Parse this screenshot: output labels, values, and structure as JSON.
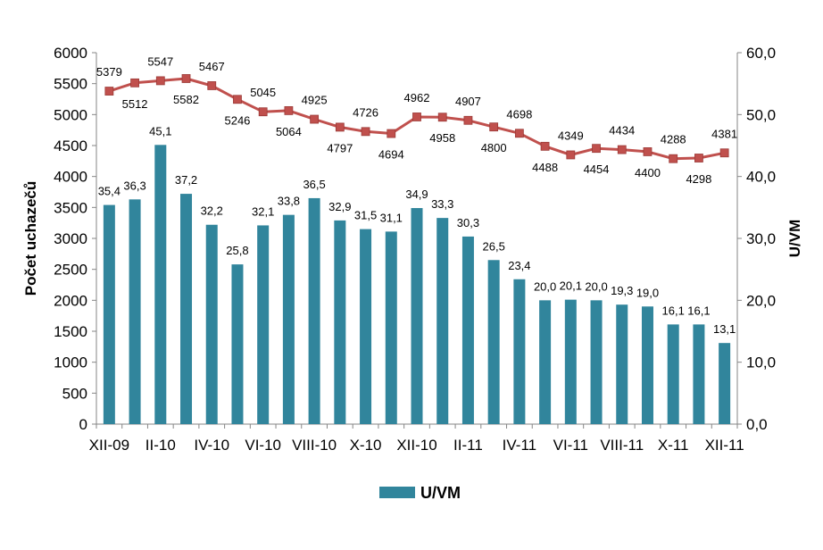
{
  "chart_data": {
    "type": "bar",
    "categories": [
      "XII-09",
      "I-10",
      "II-10",
      "III-10",
      "IV-10",
      "V-10",
      "VI-10",
      "VII-10",
      "VIII-10",
      "IX-10",
      "X-10",
      "XI-10",
      "XII-10",
      "I-11",
      "II-11",
      "III-11",
      "IV-11",
      "V-11",
      "VI-11",
      "VII-11",
      "VIII-11",
      "IX-11",
      "X-11",
      "XI-11",
      "XII-11"
    ],
    "x_tick_labels": [
      "XII-09",
      "II-10",
      "IV-10",
      "VI-10",
      "VIII-10",
      "X-10",
      "XII-10",
      "II-11",
      "IV-11",
      "VI-11",
      "VIII-11",
      "X-11",
      "XII-11"
    ],
    "series": [
      {
        "name": "U/VM",
        "kind": "bar",
        "axis": "right",
        "color": "#31859c",
        "values": [
          35.4,
          36.3,
          45.1,
          37.2,
          32.2,
          25.8,
          32.1,
          33.8,
          36.5,
          32.9,
          31.5,
          31.1,
          34.9,
          33.3,
          30.3,
          26.5,
          23.4,
          20.0,
          20.1,
          20.0,
          19.3,
          19.0,
          16.1,
          16.1,
          13.1
        ],
        "labels": [
          "35,4",
          "36,3",
          "45,1",
          "37,2",
          "32,2",
          "25,8",
          "32,1",
          "33,8",
          "36,5",
          "32,9",
          "31,5",
          "31,1",
          "34,9",
          "33,3",
          "30,3",
          "26,5",
          "23,4",
          "20,0",
          "20,1",
          "20,0",
          "19,3",
          "19,0",
          "16,1",
          "16,1",
          "13,1"
        ]
      },
      {
        "kind": "line",
        "axis": "left",
        "color": "#c0504d",
        "values": [
          5379,
          5512,
          5547,
          5582,
          5467,
          5246,
          5045,
          5064,
          4925,
          4797,
          4726,
          4694,
          4962,
          4958,
          4907,
          4800,
          4698,
          4488,
          4349,
          4454,
          4434,
          4400,
          4288,
          4298,
          4381
        ],
        "label_positions": [
          "above",
          "below",
          "above",
          "below",
          "above",
          "below",
          "above",
          "below",
          "above",
          "below",
          "above",
          "below",
          "above",
          "below",
          "above",
          "below",
          "above",
          "below",
          "above",
          "below",
          "above",
          "below",
          "above",
          "below",
          "above"
        ]
      }
    ],
    "y_left": {
      "label": "Počet uchazečů",
      "range": [
        0,
        6000
      ],
      "ticks": [
        "0",
        "500",
        "1000",
        "1500",
        "2000",
        "2500",
        "3000",
        "3500",
        "4000",
        "4500",
        "5000",
        "5500",
        "6000"
      ]
    },
    "y_right": {
      "label": "U/VM",
      "range": [
        0,
        60
      ],
      "ticks": [
        "0,0",
        "10,0",
        "20,0",
        "30,0",
        "40,0",
        "50,0",
        "60,0"
      ]
    },
    "grid": false,
    "legend": {
      "position": "bottom",
      "entries": [
        "U/VM"
      ]
    }
  }
}
